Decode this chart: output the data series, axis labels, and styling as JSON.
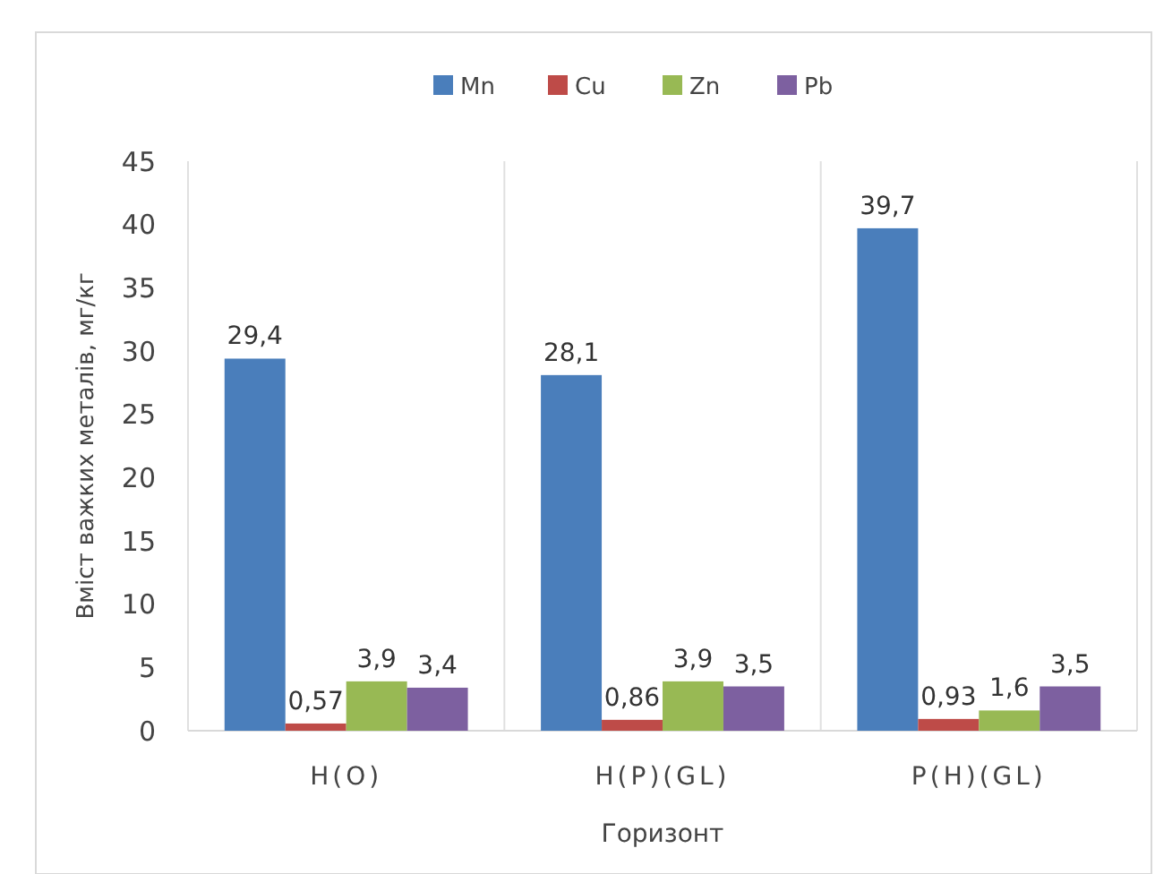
{
  "chart_data": {
    "type": "bar",
    "xlabel": "Горизонт",
    "ylabel": "Вміст важких металів, мг/кг",
    "categories": [
      "H(O)",
      "H(P)(GL)",
      "P(H)(GL)"
    ],
    "series": [
      {
        "name": "Mn",
        "color": "#4a7ebb",
        "values": [
          29.4,
          28.1,
          39.7
        ],
        "value_labels": [
          "29,4",
          "28,1",
          "39,7"
        ]
      },
      {
        "name": "Cu",
        "color": "#be4b48",
        "values": [
          0.57,
          0.86,
          0.93
        ],
        "value_labels": [
          "0,57",
          "0,86",
          "0,93"
        ]
      },
      {
        "name": "Zn",
        "color": "#98b954",
        "values": [
          3.9,
          3.9,
          1.6
        ],
        "value_labels": [
          "3,9",
          "3,9",
          "1,6"
        ]
      },
      {
        "name": "Pb",
        "color": "#7d60a0",
        "values": [
          3.4,
          3.5,
          3.5
        ],
        "value_labels": [
          "3,4",
          "3,5",
          "3,5"
        ]
      }
    ],
    "ylim": [
      0,
      45
    ],
    "yticks": [
      0,
      5,
      10,
      15,
      20,
      25,
      30,
      35,
      40,
      45
    ],
    "grid": "x",
    "legend": "top"
  }
}
